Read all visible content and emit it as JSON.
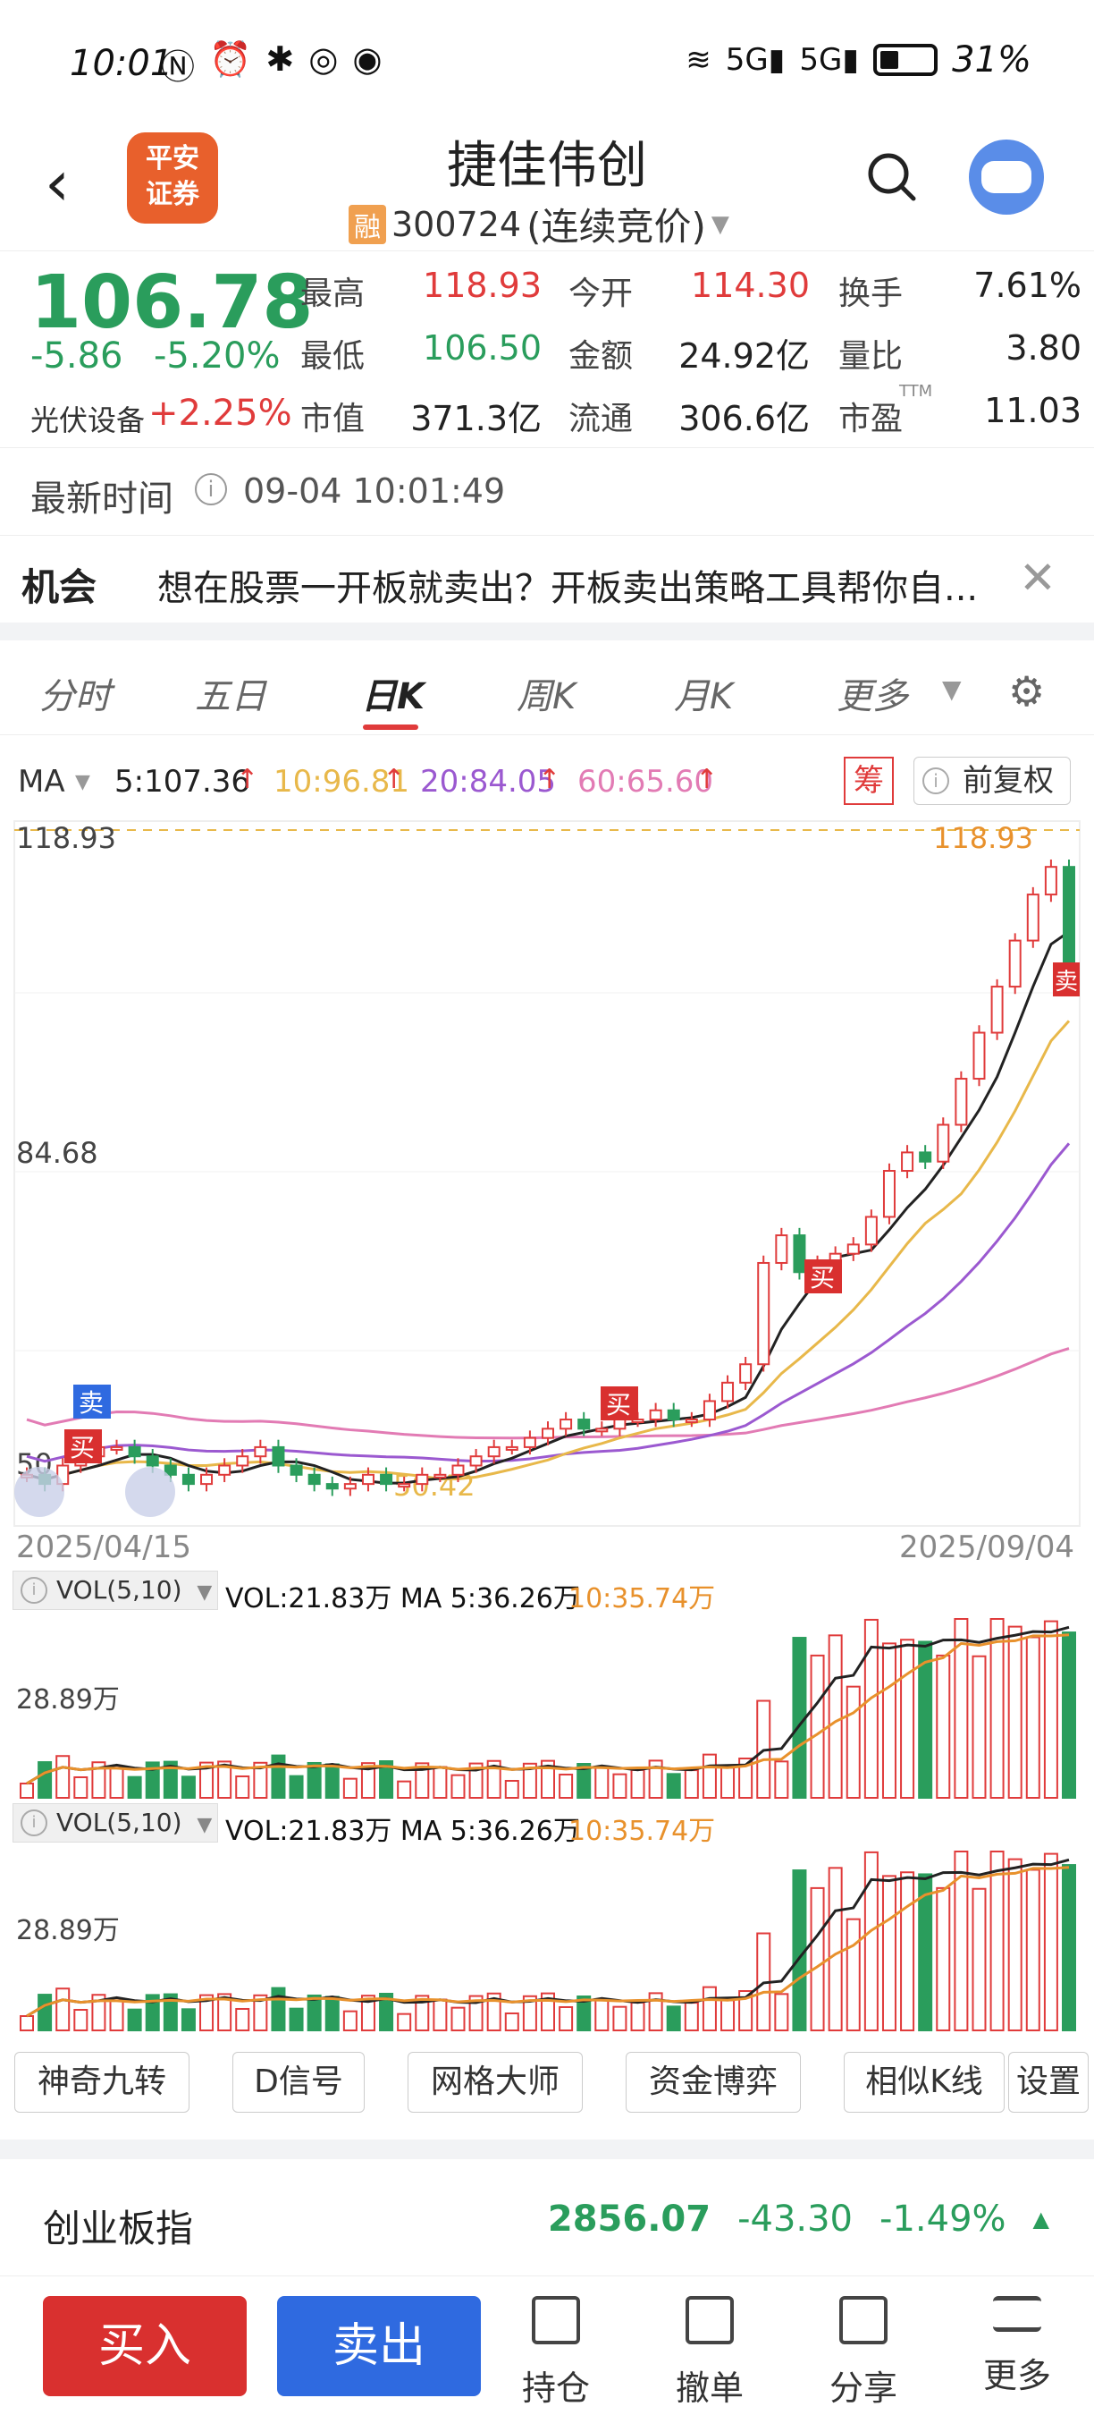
{
  "status": {
    "time": "10:01",
    "battery": "31%",
    "signal1": "5G",
    "signal2": "5G"
  },
  "header": {
    "logo_text": "平安证券",
    "stock_name": "捷佳伟创",
    "rong_badge": "融",
    "stock_code": "300724",
    "trade_status": "(连续竞价)"
  },
  "quote": {
    "price": "106.78",
    "change": "-5.86",
    "change_pct": "-5.20%",
    "sector_name": "光伏设备",
    "sector_change": "+2.25%",
    "grid": [
      {
        "label": "最高",
        "value": "118.93",
        "color": "red"
      },
      {
        "label": "今开",
        "value": "114.30",
        "color": "red"
      },
      {
        "label": "换手",
        "value": "7.61%",
        "color": "dark"
      },
      {
        "label": "最低",
        "value": "106.50",
        "color": "green"
      },
      {
        "label": "金额",
        "value": "24.92亿",
        "color": "dark"
      },
      {
        "label": "量比",
        "value": "3.80",
        "color": "dark"
      },
      {
        "label": "市值",
        "value": "371.3亿",
        "color": "dark"
      },
      {
        "label": "流通",
        "value": "306.6亿",
        "color": "dark"
      },
      {
        "label": "市盈",
        "value": "11.03",
        "color": "dark"
      }
    ],
    "pe_suffix": "TTM"
  },
  "update": {
    "label": "最新时间",
    "time": "09-04 10:01:49"
  },
  "promo": {
    "tag": "机会",
    "text": "想在股票一开板就卖出？开板卖出策略工具帮你自..."
  },
  "tabs": [
    "分时",
    "五日",
    "日K",
    "周K",
    "月K",
    "更多"
  ],
  "active_tab": "日K",
  "ma_legend": {
    "ma_label": "MA",
    "ma5": "5:107.36",
    "ma10": "10:96.81",
    "ma20": "20:84.05",
    "ma60": "60:65.60",
    "chou": "筹",
    "fuquan": "前复权"
  },
  "chart_data": {
    "type": "candlestick",
    "y_high_label": "118.93",
    "y_mid_label": "84.68",
    "y_low_label": "50",
    "low_marker": "50.42",
    "high_marker": "118.93",
    "start_date": "2025/04/15",
    "end_date": "2025/09/04",
    "signals": [
      {
        "type": "卖"
      },
      {
        "type": "买"
      },
      {
        "type": "买"
      },
      {
        "type": "买"
      },
      {
        "type": "卖"
      }
    ],
    "close_series": [
      52,
      51,
      53,
      54,
      55,
      55,
      54,
      53,
      52,
      51,
      52,
      53,
      54,
      55,
      53,
      52,
      51,
      50.5,
      51,
      52,
      51,
      51,
      52,
      52,
      53,
      54,
      55,
      55,
      56,
      57,
      58,
      57,
      57,
      58,
      58,
      59,
      58,
      58,
      60,
      62,
      64,
      75,
      78,
      74,
      75,
      76,
      77,
      80,
      85,
      87,
      86,
      90,
      95,
      100,
      105,
      110,
      115,
      118,
      106.78
    ],
    "ma_colors": {
      "ma5": "#222222",
      "ma10": "#e8b84a",
      "ma20": "#9b59d0",
      "ma60": "#e27bb4"
    }
  },
  "volume": {
    "panel1": {
      "btn": "VOL(5,10)",
      "text": "VOL:21.83万 MA 5:36.26万",
      "ma10": "10:35.74万",
      "axis_label": "28.89万"
    },
    "panel2": {
      "btn": "VOL(5,10)",
      "text": "VOL:21.83万 MA 5:36.26万",
      "ma10": "10:35.74万",
      "axis_label": "28.89万"
    }
  },
  "tools": [
    "神奇九转",
    "D信号",
    "网格大师",
    "资金博弈",
    "相似K线",
    "设置"
  ],
  "index": {
    "name": "创业板指",
    "value": "2856.07",
    "change": "-43.30",
    "change_pct": "-1.49%"
  },
  "bottom": {
    "buy": "买入",
    "sell": "卖出",
    "items": [
      "持仓",
      "撤单",
      "分享",
      "更多"
    ]
  }
}
